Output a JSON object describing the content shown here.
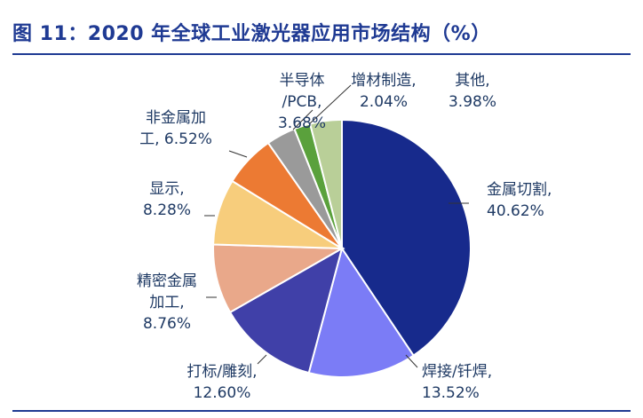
{
  "figure": {
    "title": "图 11：2020 年全球工业激光器应用市场结构（%）"
  },
  "chart_data": {
    "type": "pie",
    "title": "图 11：2020 年全球工业激光器应用市场结构（%）",
    "slices": [
      {
        "name": "金属切割",
        "value": 40.62,
        "label_lines": [
          "金属切割,",
          "40.62%"
        ],
        "color": "#172a8c"
      },
      {
        "name": "焊接/钎焊",
        "value": 13.52,
        "label_lines": [
          "焊接/钎焊,",
          "13.52%"
        ],
        "color": "#7b7cf6"
      },
      {
        "name": "打标/雕刻",
        "value": 12.6,
        "label_lines": [
          "打标/雕刻,",
          "12.60%"
        ],
        "color": "#4040a8"
      },
      {
        "name": "精密金属加工",
        "value": 8.76,
        "label_lines": [
          "精密金属",
          "加工,",
          "8.76%"
        ],
        "color": "#e9a88a"
      },
      {
        "name": "显示",
        "value": 8.28,
        "label_lines": [
          "显示,",
          "8.28%"
        ],
        "color": "#f7cd7c"
      },
      {
        "name": "非金属加工",
        "value": 6.52,
        "label_lines": [
          "非金属加",
          "工, 6.52%"
        ],
        "color": "#ec7a33"
      },
      {
        "name": "半导体/PCB",
        "value": 3.68,
        "label_lines": [
          "半导体",
          "/PCB,",
          "3.68%"
        ],
        "color": "#9a9a9a"
      },
      {
        "name": "增材制造",
        "value": 2.04,
        "label_lines": [
          "增材制造,",
          "2.04%"
        ],
        "color": "#5aa13c"
      },
      {
        "name": "其他",
        "value": 3.98,
        "label_lines": [
          "其他,",
          "3.98%"
        ],
        "color": "#b9cf98"
      }
    ]
  }
}
